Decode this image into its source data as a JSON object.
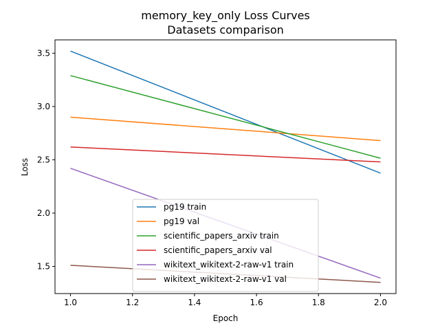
{
  "chart_data": {
    "type": "line",
    "title": "memory_key_only Loss Curves",
    "subtitle": "Datasets comparison",
    "xlabel": "Epoch",
    "ylabel": "Loss",
    "xlim": [
      0.95,
      2.05
    ],
    "ylim": [
      1.245,
      3.625
    ],
    "xticks": [
      "1.0",
      "1.2",
      "1.4",
      "1.6",
      "1.8",
      "2.0"
    ],
    "yticks": [
      "1.5",
      "2.0",
      "2.5",
      "3.0",
      "3.5"
    ],
    "grid": false,
    "legend_position": "lower-center",
    "x": [
      1.0,
      2.0
    ],
    "series": [
      {
        "name": "pg19 train",
        "values": [
          3.52,
          2.375
        ],
        "color": "#1f77b4"
      },
      {
        "name": "pg19 val",
        "values": [
          2.9,
          2.68
        ],
        "color": "#ff7f0e"
      },
      {
        "name": "scientific_papers_arxiv train",
        "values": [
          3.29,
          2.515
        ],
        "color": "#2ca02c"
      },
      {
        "name": "scientific_papers_arxiv val",
        "values": [
          2.62,
          2.48
        ],
        "color": "#d62728"
      },
      {
        "name": "wikitext_wikitext-2-raw-v1 train",
        "values": [
          2.42,
          1.39
        ],
        "color": "#9467bd"
      },
      {
        "name": "wikitext_wikitext-2-raw-v1 val",
        "values": [
          1.51,
          1.35
        ],
        "color": "#8c564b"
      }
    ]
  }
}
